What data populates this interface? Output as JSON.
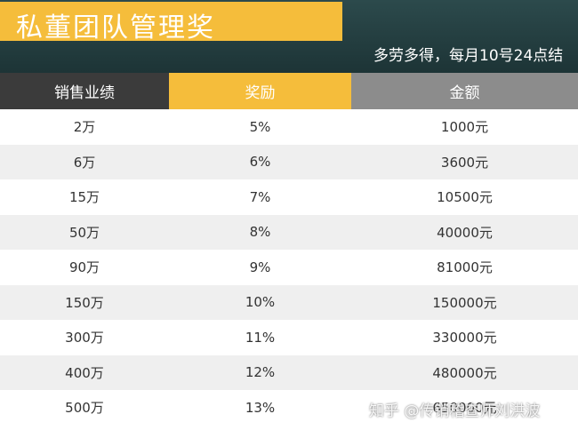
{
  "header": {
    "title": "私董团队管理奖",
    "subtitle": "多劳多得，每月10号24点结"
  },
  "table": {
    "columns": [
      "销售业绩",
      "奖励",
      "金额"
    ],
    "rows": [
      [
        "2万",
        "5%",
        "1000元"
      ],
      [
        "6万",
        "6%",
        "3600元"
      ],
      [
        "15万",
        "7%",
        "10500元"
      ],
      [
        "50万",
        "8%",
        "40000元"
      ],
      [
        "90万",
        "9%",
        "81000元"
      ],
      [
        "150万",
        "10%",
        "150000元"
      ],
      [
        "300万",
        "11%",
        "330000元"
      ],
      [
        "400万",
        "12%",
        "480000元"
      ],
      [
        "500万",
        "13%",
        "650000元"
      ]
    ]
  },
  "watermark": "知乎 @传销稽查师刘洪波"
}
